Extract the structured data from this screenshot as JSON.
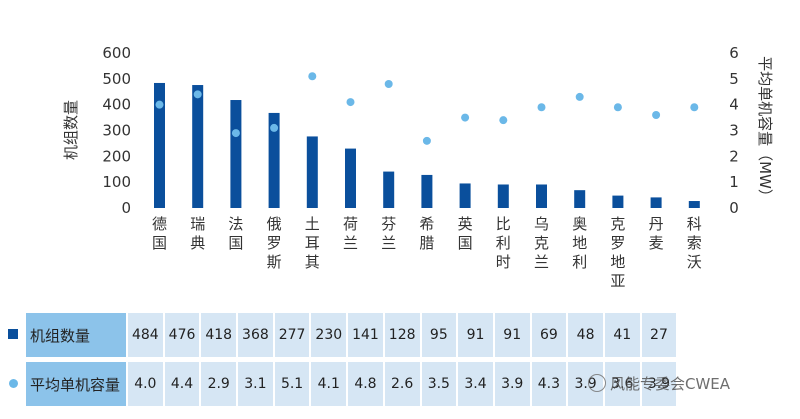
{
  "chart_data": {
    "type": "bar",
    "categories": [
      "德国",
      "瑞典",
      "法国",
      "俄罗斯",
      "土耳其",
      "荷兰",
      "芬兰",
      "希腊",
      "英国",
      "比利时",
      "乌克兰",
      "奥地利",
      "克罗地亚",
      "丹麦",
      "科索沃"
    ],
    "series": [
      {
        "name": "机组数量",
        "type": "bar",
        "axis": "left",
        "color": "#0a4f9c",
        "values": [
          484,
          476,
          418,
          368,
          277,
          230,
          141,
          128,
          95,
          91,
          91,
          69,
          48,
          41,
          27
        ]
      },
      {
        "name": "平均单机容量",
        "type": "scatter",
        "axis": "right",
        "color": "#6bb8e8",
        "values": [
          4.0,
          4.4,
          2.9,
          3.1,
          5.1,
          4.1,
          4.8,
          2.6,
          3.5,
          3.4,
          3.9,
          4.3,
          3.9,
          3.6,
          3.9
        ]
      }
    ],
    "ylabel": "机组数量",
    "y2label": "平均单机容量（MW）",
    "ylim": [
      0,
      600
    ],
    "y2lim": [
      0,
      6
    ],
    "yticks": [
      "0",
      "100",
      "200",
      "300",
      "400",
      "500",
      "600"
    ],
    "y2ticks": [
      "0",
      "1",
      "2",
      "3",
      "4",
      "5",
      "6"
    ],
    "grid": false,
    "legend": "table-below"
  },
  "table": {
    "rows": [
      {
        "label": "机组数量",
        "marker": "square",
        "cells": [
          "484",
          "476",
          "418",
          "368",
          "277",
          "230",
          "141",
          "128",
          "95",
          "91",
          "91",
          "69",
          "48",
          "41",
          "27"
        ]
      },
      {
        "label": "平均单机容量",
        "marker": "circle",
        "cells": [
          "4.0",
          "4.4",
          "2.9",
          "3.1",
          "5.1",
          "4.1",
          "4.8",
          "2.6",
          "3.5",
          "3.4",
          "3.9",
          "4.3",
          "3.9",
          "3.6",
          "3.9"
        ]
      }
    ]
  },
  "watermark": {
    "text": "风能专委会CWEA",
    "icon": "wechat-icon"
  }
}
